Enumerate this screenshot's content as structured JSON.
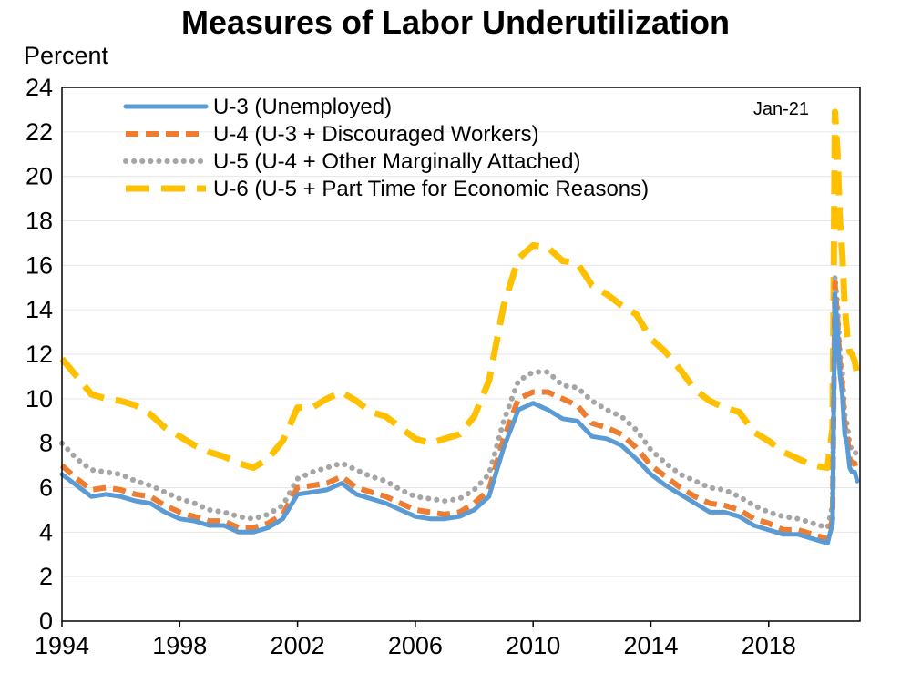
{
  "chart_data": {
    "type": "line",
    "title": "Measures of Labor Underutilization",
    "ylabel": "Percent",
    "xlabel": "",
    "xlim": [
      1994.0,
      2021.1
    ],
    "ylim": [
      0,
      24
    ],
    "yticks": [
      0,
      2,
      4,
      6,
      8,
      10,
      12,
      14,
      16,
      18,
      20,
      22,
      24
    ],
    "xticks": [
      1994,
      1998,
      2002,
      2006,
      2010,
      2014,
      2018
    ],
    "grid": true,
    "legend_position": "top-left",
    "annotation": "Jan-21",
    "series": [
      {
        "name": "U-3 (Unemployed)",
        "color": "#5b9bd5",
        "style": "solid",
        "x": [
          1994.0,
          1994.5,
          1995.0,
          1995.5,
          1996.0,
          1996.5,
          1997.0,
          1997.5,
          1998.0,
          1998.5,
          1999.0,
          1999.5,
          2000.0,
          2000.5,
          2001.0,
          2001.5,
          2002.0,
          2002.5,
          2003.0,
          2003.5,
          2004.0,
          2004.5,
          2005.0,
          2005.5,
          2006.0,
          2006.5,
          2007.0,
          2007.5,
          2008.0,
          2008.5,
          2009.0,
          2009.5,
          2010.0,
          2010.5,
          2011.0,
          2011.5,
          2012.0,
          2012.5,
          2013.0,
          2013.5,
          2014.0,
          2014.5,
          2015.0,
          2015.5,
          2016.0,
          2016.5,
          2017.0,
          2017.5,
          2018.0,
          2018.5,
          2019.0,
          2019.5,
          2020.0,
          2020.17,
          2020.25,
          2020.33,
          2020.42,
          2020.5,
          2020.58,
          2020.67,
          2020.75,
          2020.83,
          2020.92,
          2021.0
        ],
        "values": [
          6.6,
          6.1,
          5.6,
          5.7,
          5.6,
          5.4,
          5.3,
          4.9,
          4.6,
          4.5,
          4.3,
          4.3,
          4.0,
          4.0,
          4.2,
          4.6,
          5.7,
          5.8,
          5.9,
          6.2,
          5.7,
          5.5,
          5.3,
          5.0,
          4.7,
          4.6,
          4.6,
          4.7,
          5.0,
          5.6,
          7.8,
          9.5,
          9.8,
          9.5,
          9.1,
          9.0,
          8.3,
          8.2,
          7.9,
          7.3,
          6.6,
          6.1,
          5.7,
          5.3,
          4.9,
          4.9,
          4.7,
          4.3,
          4.1,
          3.9,
          3.9,
          3.7,
          3.5,
          4.4,
          14.7,
          13.3,
          11.1,
          10.2,
          8.4,
          7.9,
          6.9,
          6.7,
          6.7,
          6.3
        ]
      },
      {
        "name": "U-4 (U-3 + Discouraged Workers)",
        "color": "#ed7d31",
        "style": "dashed",
        "x": [
          1994.0,
          1994.5,
          1995.0,
          1995.5,
          1996.0,
          1996.5,
          1997.0,
          1997.5,
          1998.0,
          1998.5,
          1999.0,
          1999.5,
          2000.0,
          2000.5,
          2001.0,
          2001.5,
          2002.0,
          2002.5,
          2003.0,
          2003.5,
          2004.0,
          2004.5,
          2005.0,
          2005.5,
          2006.0,
          2006.5,
          2007.0,
          2007.5,
          2008.0,
          2008.5,
          2009.0,
          2009.5,
          2010.0,
          2010.5,
          2011.0,
          2011.5,
          2012.0,
          2012.5,
          2013.0,
          2013.5,
          2014.0,
          2014.5,
          2015.0,
          2015.5,
          2016.0,
          2016.5,
          2017.0,
          2017.5,
          2018.0,
          2018.5,
          2019.0,
          2019.5,
          2020.0,
          2020.17,
          2020.25,
          2020.33,
          2020.42,
          2020.5,
          2020.58,
          2020.67,
          2020.75,
          2020.83,
          2020.92,
          2021.0
        ],
        "values": [
          7.0,
          6.4,
          5.9,
          6.0,
          5.9,
          5.7,
          5.6,
          5.2,
          4.9,
          4.7,
          4.5,
          4.5,
          4.2,
          4.2,
          4.4,
          4.8,
          6.0,
          6.1,
          6.2,
          6.5,
          6.0,
          5.8,
          5.6,
          5.3,
          5.0,
          4.9,
          4.8,
          4.9,
          5.3,
          5.9,
          8.2,
          10.0,
          10.3,
          10.3,
          10.0,
          9.7,
          8.9,
          8.7,
          8.4,
          7.8,
          7.0,
          6.5,
          6.0,
          5.6,
          5.3,
          5.2,
          5.0,
          4.6,
          4.4,
          4.1,
          4.1,
          3.9,
          3.7,
          4.6,
          15.2,
          13.7,
          11.5,
          10.6,
          8.8,
          8.3,
          7.3,
          7.1,
          7.1,
          6.7
        ]
      },
      {
        "name": "U-5 (U-4 + Other Marginally Attached)",
        "color": "#a5a5a5",
        "style": "dotted",
        "x": [
          1994.0,
          1994.5,
          1995.0,
          1995.5,
          1996.0,
          1996.5,
          1997.0,
          1997.5,
          1998.0,
          1998.5,
          1999.0,
          1999.5,
          2000.0,
          2000.5,
          2001.0,
          2001.5,
          2002.0,
          2002.5,
          2003.0,
          2003.5,
          2004.0,
          2004.5,
          2005.0,
          2005.5,
          2006.0,
          2006.5,
          2007.0,
          2007.5,
          2008.0,
          2008.5,
          2009.0,
          2009.5,
          2010.0,
          2010.5,
          2011.0,
          2011.5,
          2012.0,
          2012.5,
          2013.0,
          2013.5,
          2014.0,
          2014.5,
          2015.0,
          2015.5,
          2016.0,
          2016.5,
          2017.0,
          2017.5,
          2018.0,
          2018.5,
          2019.0,
          2019.5,
          2020.0,
          2020.17,
          2020.25,
          2020.33,
          2020.42,
          2020.5,
          2020.58,
          2020.67,
          2020.75,
          2020.83,
          2020.92,
          2021.0
        ],
        "values": [
          8.0,
          7.3,
          6.8,
          6.7,
          6.6,
          6.3,
          6.1,
          5.8,
          5.5,
          5.3,
          5.0,
          4.9,
          4.7,
          4.6,
          4.8,
          5.2,
          6.4,
          6.7,
          6.9,
          7.1,
          6.8,
          6.5,
          6.3,
          5.9,
          5.6,
          5.5,
          5.4,
          5.5,
          5.9,
          6.6,
          9.0,
          10.8,
          11.2,
          11.2,
          10.6,
          10.5,
          9.9,
          9.5,
          9.2,
          8.6,
          7.7,
          7.1,
          6.6,
          6.3,
          6.0,
          5.9,
          5.6,
          5.2,
          4.9,
          4.7,
          4.6,
          4.4,
          4.2,
          5.2,
          15.5,
          14.3,
          12.0,
          11.2,
          9.3,
          8.8,
          7.9,
          7.7,
          7.7,
          7.3
        ]
      },
      {
        "name": "U-6 (U-5 + Part Time for Economic Reasons)",
        "color": "#ffc000",
        "style": "long-dash",
        "x": [
          1994.0,
          1994.5,
          1995.0,
          1995.5,
          1996.0,
          1996.5,
          1997.0,
          1997.5,
          1998.0,
          1998.5,
          1999.0,
          1999.5,
          2000.0,
          2000.5,
          2001.0,
          2001.5,
          2002.0,
          2002.5,
          2003.0,
          2003.5,
          2004.0,
          2004.5,
          2005.0,
          2005.5,
          2006.0,
          2006.5,
          2007.0,
          2007.5,
          2008.0,
          2008.5,
          2009.0,
          2009.5,
          2010.0,
          2010.5,
          2011.0,
          2011.5,
          2012.0,
          2012.5,
          2013.0,
          2013.5,
          2014.0,
          2014.5,
          2015.0,
          2015.5,
          2016.0,
          2016.5,
          2017.0,
          2017.5,
          2018.0,
          2018.5,
          2019.0,
          2019.5,
          2020.0,
          2020.17,
          2020.25,
          2020.33,
          2020.42,
          2020.5,
          2020.58,
          2020.67,
          2020.75,
          2020.83,
          2020.92,
          2021.0
        ],
        "values": [
          11.8,
          11.0,
          10.2,
          10.0,
          9.9,
          9.7,
          9.3,
          8.7,
          8.3,
          7.9,
          7.6,
          7.4,
          7.1,
          6.9,
          7.3,
          8.1,
          9.6,
          9.6,
          10.0,
          10.3,
          9.9,
          9.4,
          9.2,
          8.7,
          8.2,
          8.0,
          8.2,
          8.4,
          9.2,
          10.8,
          14.2,
          16.3,
          16.9,
          16.8,
          16.2,
          16.1,
          15.1,
          14.7,
          14.2,
          13.8,
          12.7,
          12.1,
          11.3,
          10.4,
          9.9,
          9.6,
          9.4,
          8.5,
          8.1,
          7.6,
          7.3,
          7.0,
          6.9,
          8.7,
          22.9,
          21.2,
          18.0,
          16.5,
          14.2,
          12.8,
          12.1,
          12.0,
          11.7,
          11.1
        ]
      }
    ]
  }
}
